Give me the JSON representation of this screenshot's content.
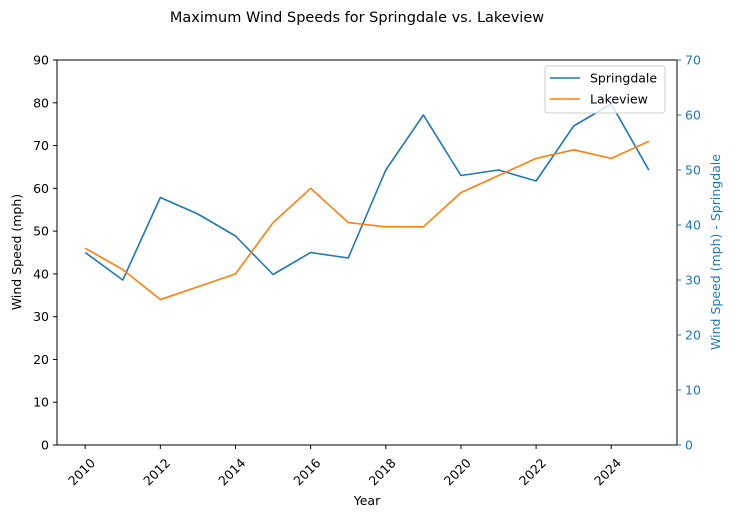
{
  "chart_data": {
    "type": "line",
    "title": "Maximum Wind Speeds for Springdale vs. Lakeview",
    "xlabel": "Year",
    "ylabel": "Wind Speed (mph)",
    "ylabel_right": "Wind Speed (mph) - Springdale",
    "x": [
      2010,
      2011,
      2012,
      2013,
      2014,
      2015,
      2016,
      2017,
      2018,
      2019,
      2020,
      2021,
      2022,
      2023,
      2024,
      2025
    ],
    "xticks": [
      2010,
      2012,
      2014,
      2016,
      2018,
      2020,
      2022,
      2024
    ],
    "xlim": [
      2009.25,
      2025.75
    ],
    "ylim": [
      0,
      90
    ],
    "yticks": [
      0,
      10,
      20,
      30,
      40,
      50,
      60,
      70,
      80,
      90
    ],
    "ylim_right": [
      0,
      70
    ],
    "yticks_right": [
      0,
      10,
      20,
      30,
      40,
      50,
      60,
      70
    ],
    "legend_placement": "top-right",
    "grid": false,
    "series": [
      {
        "name": "Springdale",
        "axis": "right",
        "color": "#1f77b4",
        "values": [
          35,
          30,
          45,
          42,
          38,
          31,
          35,
          34,
          50,
          60,
          49,
          50,
          48,
          58,
          62,
          50
        ]
      },
      {
        "name": "Lakeview",
        "axis": "left",
        "color": "#ff7f0e",
        "values": [
          46,
          41,
          34,
          37,
          40,
          52,
          60,
          52,
          51,
          51,
          59,
          63,
          67,
          69,
          67,
          71
        ]
      }
    ]
  }
}
